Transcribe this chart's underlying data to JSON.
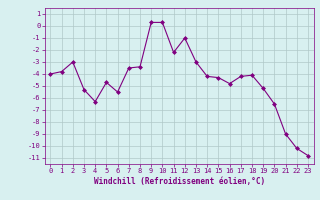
{
  "x": [
    0,
    1,
    2,
    3,
    4,
    5,
    6,
    7,
    8,
    9,
    10,
    11,
    12,
    13,
    14,
    15,
    16,
    17,
    18,
    19,
    20,
    21,
    22,
    23
  ],
  "y": [
    -4,
    -3.8,
    -3,
    -5.3,
    -6.3,
    -4.7,
    -5.5,
    -3.5,
    -3.4,
    0.3,
    0.3,
    -2.2,
    -1,
    -3,
    -4.2,
    -4.3,
    -4.8,
    -4.2,
    -4.1,
    -5.2,
    -6.5,
    -9.0,
    -10.2,
    -10.8
  ],
  "line_color": "#800080",
  "marker": "D",
  "marker_size": 2,
  "bg_color": "#d8f0f0",
  "grid_color": "#b0c8c8",
  "xlabel": "Windchill (Refroidissement éolien,°C)",
  "ylim": [
    -11.5,
    1.5
  ],
  "xlim": [
    -0.5,
    23.5
  ],
  "yticks": [
    1,
    0,
    -1,
    -2,
    -3,
    -4,
    -5,
    -6,
    -7,
    -8,
    -9,
    -10,
    -11
  ],
  "xticks": [
    0,
    1,
    2,
    3,
    4,
    5,
    6,
    7,
    8,
    9,
    10,
    11,
    12,
    13,
    14,
    15,
    16,
    17,
    18,
    19,
    20,
    21,
    22,
    23
  ],
  "tick_fontsize": 5,
  "xlabel_fontsize": 5.5
}
